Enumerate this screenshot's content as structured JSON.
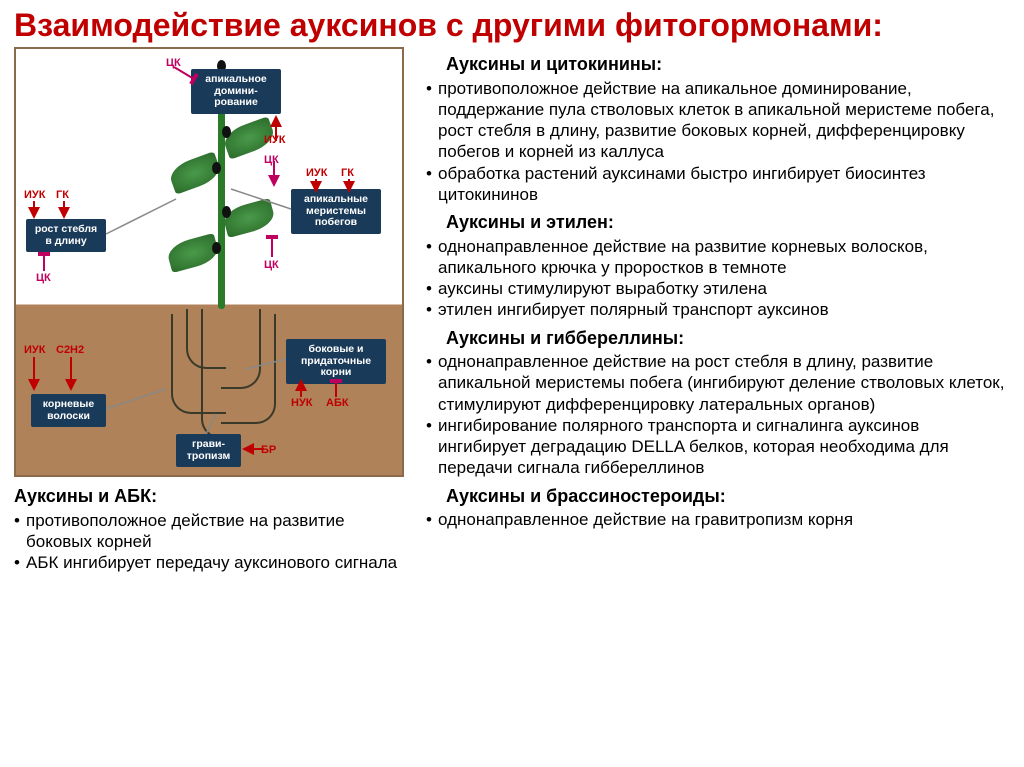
{
  "title": "Взаимодействие ауксинов с другими фитогормонами:",
  "sections": {
    "s1": {
      "heading": "Ауксины и цитокинины:",
      "items": [
        "противоположное действие на апикальное доминирование, поддержание пула стволовых клеток в апикальной меристеме побега, рост стебля в длину, развитие боковых корней, дифференцировку побегов и корней из каллуса",
        "обработка растений ауксинами быстро ингибирует биосинтез цитокининов"
      ]
    },
    "s2": {
      "heading": "Ауксины и этилен:",
      "items": [
        "однонаправленное действие на развитие корневых волосков, апикального крючка у проростков в темноте",
        "ауксины стимулируют выработку этилена",
        "этилен ингибирует полярный транспорт ауксинов"
      ]
    },
    "s3": {
      "heading": "Ауксины и гиббереллины:",
      "items": [
        "однонаправленное действие на рост стебля в длину, развитие апикальной меристемы побега (ингибируют деление стволовых клеток, стимулируют дифференцировку латеральных органов)",
        "ингибирование полярного транспорта и сигналинга ауксинов ингибирует деградацию DELLA белков, которая необходима для передачи сигнала гиббереллинов"
      ]
    },
    "s4": {
      "heading": "Ауксины и брассиностероиды:",
      "items": [
        "однонаправленное действие на гравитропизм корня"
      ]
    },
    "abk": {
      "heading": "Ауксины и АБК:",
      "items": [
        "противоположное действие на развитие боковых корней",
        "АБК ингибирует передачу ауксинового сигнала"
      ]
    }
  },
  "diagram": {
    "labels": {
      "apical_dom": "апикальное\nдомини-\nрование",
      "apical_mer": "апикальные\nмеристемы\nпобегов",
      "stem_growth": "рост стебля\nв длину",
      "lateral_roots": "боковые и\nпридаточные\nкорни",
      "root_hairs": "корневые\nволоски",
      "gravitropism": "грави-\nтропизм"
    },
    "hormones": {
      "CK": {
        "text": "ЦК",
        "color": "#c00060"
      },
      "IUK": {
        "text": "ИУК",
        "color": "#c00000"
      },
      "GK": {
        "text": "ГК",
        "color": "#c00000"
      },
      "C2H2": {
        "text": "С2Н2",
        "color": "#c00000"
      },
      "NUK": {
        "text": "НУК",
        "color": "#c00000"
      },
      "ABK": {
        "text": "АБК",
        "color": "#c00000"
      },
      "BR": {
        "text": "БР",
        "color": "#c00000"
      }
    },
    "colors": {
      "sky": "#ffffff",
      "soil": "#b0825a",
      "box": "#1a3a5a",
      "stem": "#2a7a2a",
      "leaf": "#3a8a3a"
    }
  }
}
